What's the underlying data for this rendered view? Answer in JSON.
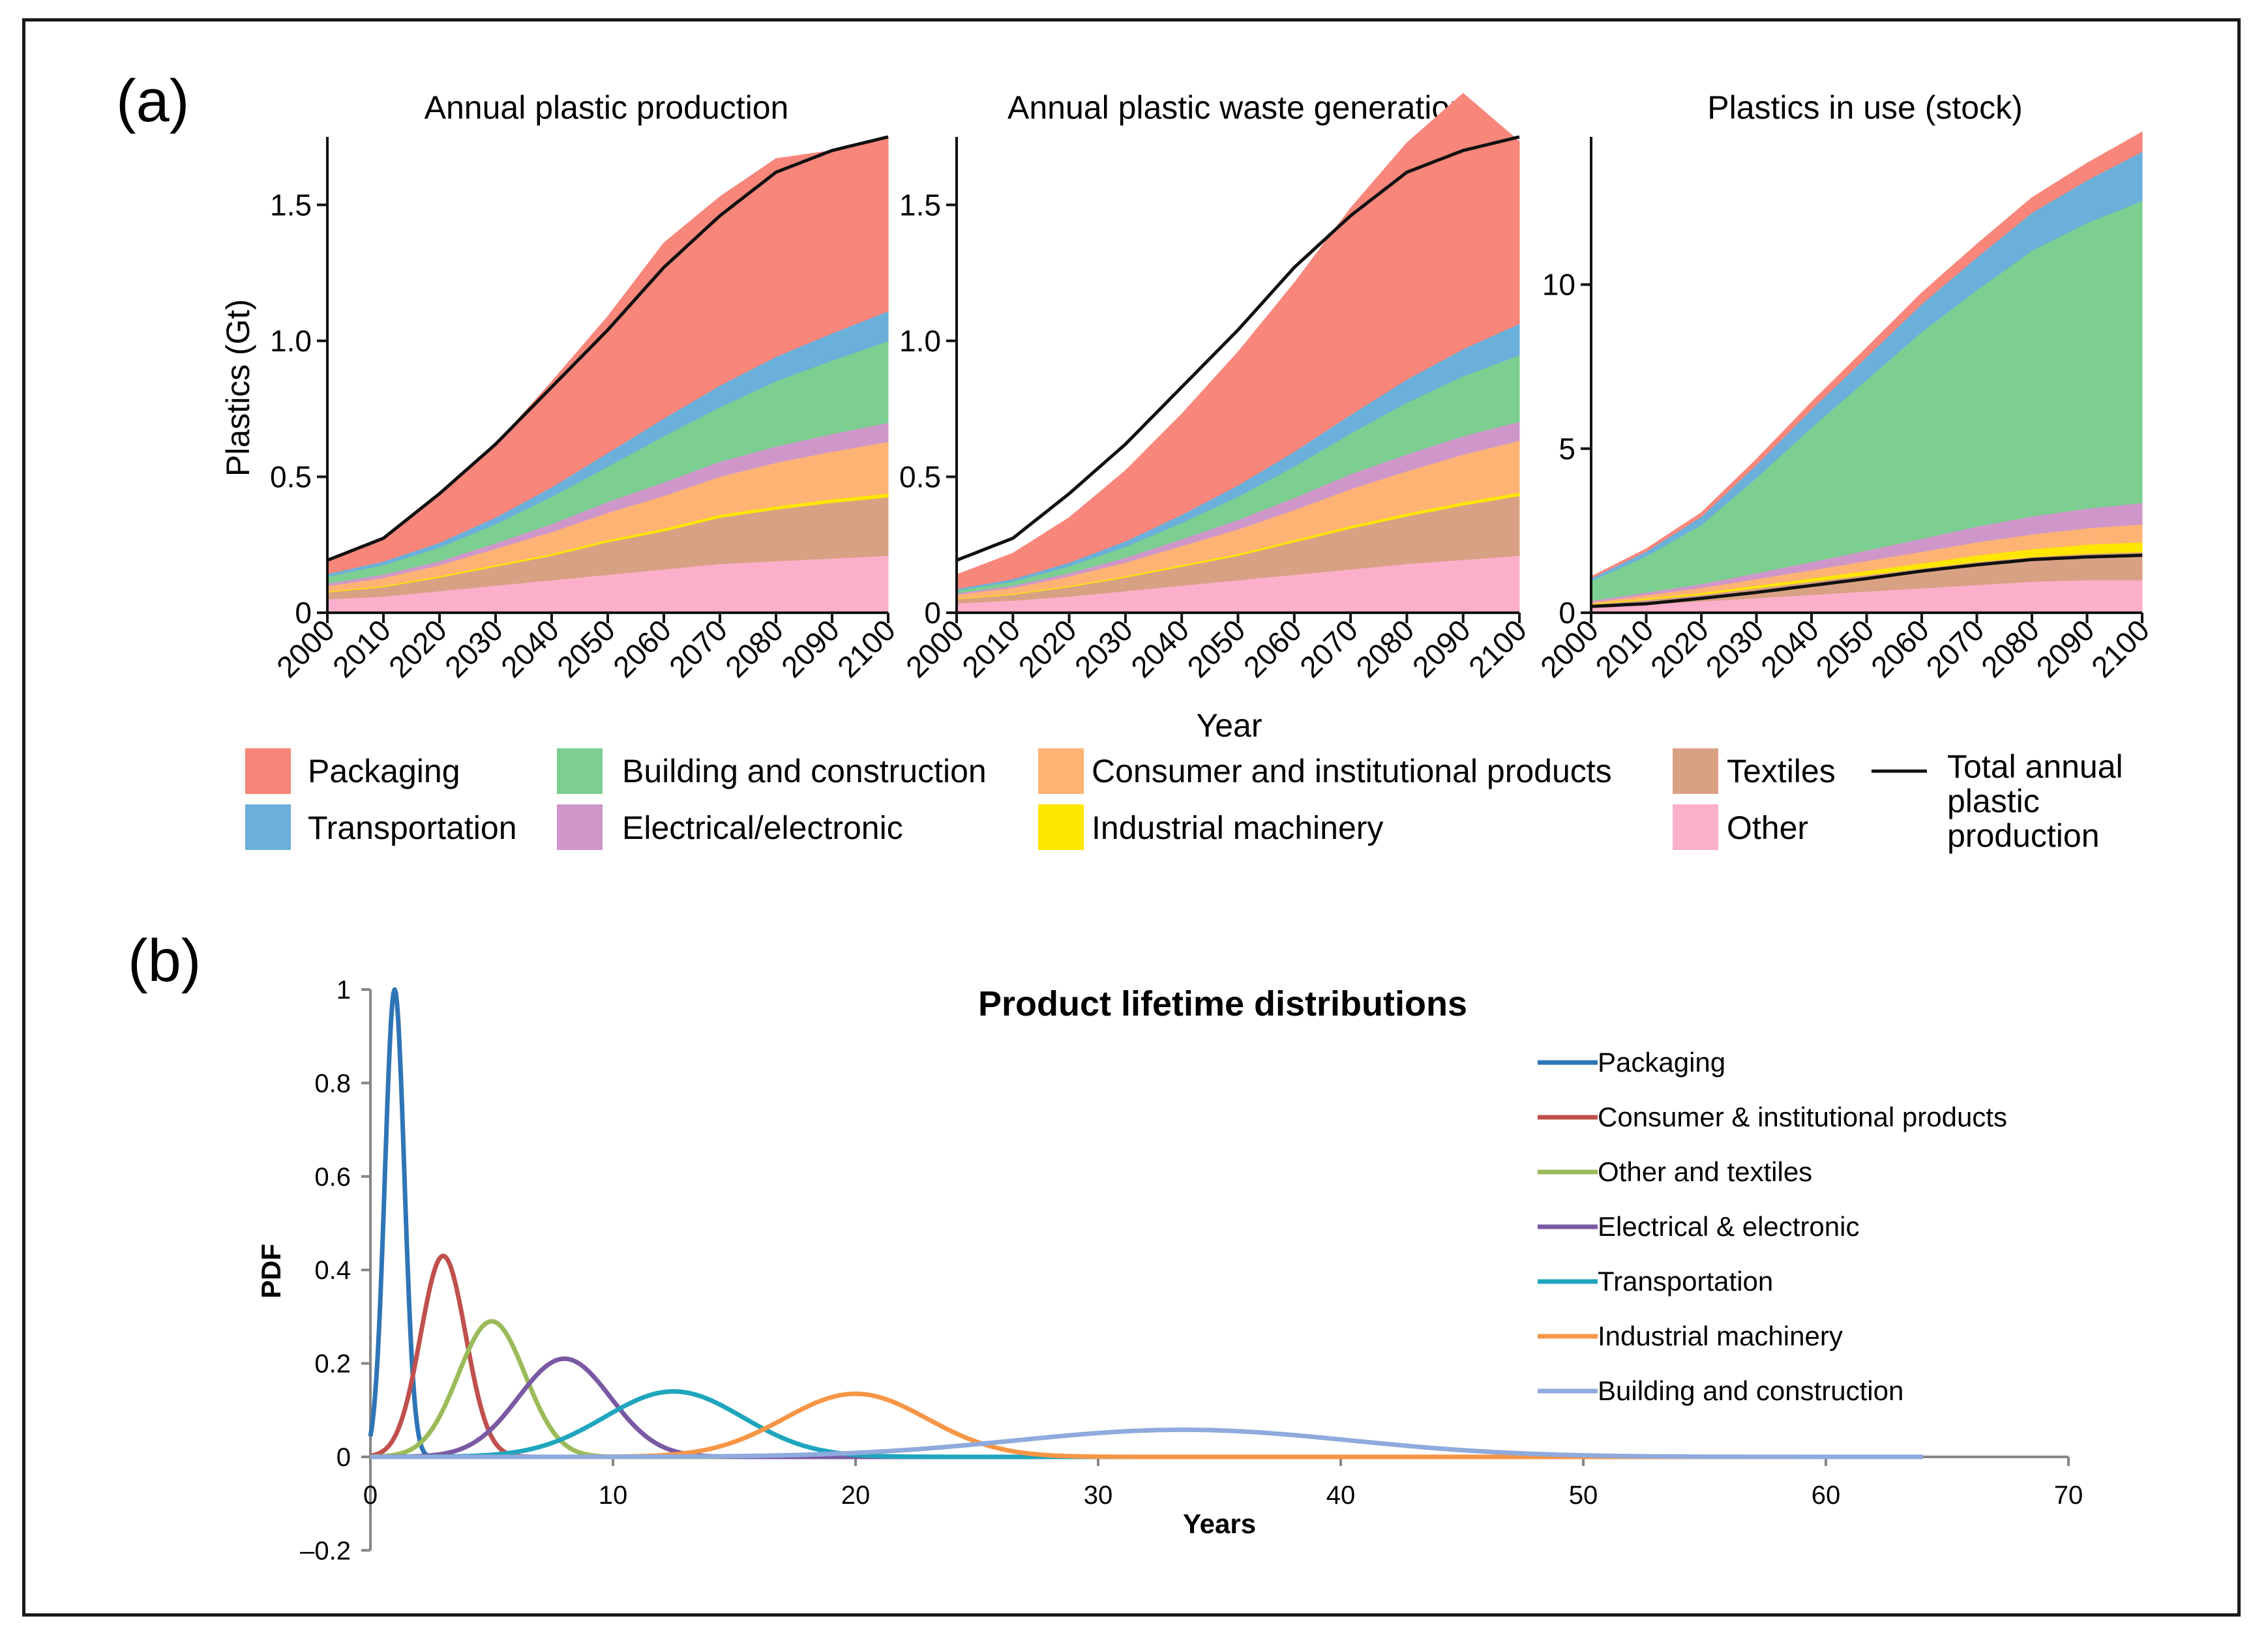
{
  "panel_labels": {
    "a": "(a)",
    "b": "(b)"
  },
  "colors": {
    "packaging": "#f8867a",
    "transportation": "#6ab0da",
    "building": "#7ccf91",
    "electrical": "#cf97c9",
    "consumer": "#fdb374",
    "industrial": "#ffe600",
    "textiles": "#d9a184",
    "other": "#fcafcb",
    "total": "#111111"
  },
  "legend_a": {
    "packaging": "Packaging",
    "transportation": "Transportation",
    "building": "Building and construction",
    "electrical": "Electrical/electronic",
    "consumer": "Consumer and institutional products",
    "industrial": "Industrial machinery",
    "textiles": "Textiles",
    "other": "Other",
    "total_line1": "Total annual",
    "total_line2": "plastic",
    "total_line3": "production"
  },
  "chart_data": [
    {
      "type": "area",
      "title": "Annual plastic production",
      "xlabel": "Year",
      "ylabel": "Plastics (Gt)",
      "x": [
        2000,
        2010,
        2020,
        2030,
        2040,
        2050,
        2060,
        2070,
        2080,
        2090,
        2100
      ],
      "xlim": [
        2000,
        2100
      ],
      "ylim": [
        0,
        1.75
      ],
      "yticks": [
        0,
        0.5,
        1.0,
        1.5
      ],
      "yticklabels": [
        "0",
        "0.5",
        "1.0",
        "1.5"
      ],
      "xticklabels": [
        "2000",
        "2010",
        "2020",
        "2030",
        "2040",
        "2050",
        "2060",
        "2070",
        "2080",
        "2090",
        "2100"
      ],
      "stack_order": [
        "other",
        "textiles",
        "industrial",
        "consumer",
        "electrical",
        "building",
        "transportation",
        "packaging"
      ],
      "series": [
        {
          "name": "Other",
          "key": "other",
          "values": [
            0.05,
            0.06,
            0.08,
            0.1,
            0.12,
            0.14,
            0.16,
            0.18,
            0.19,
            0.2,
            0.21
          ]
        },
        {
          "name": "Textiles",
          "key": "textiles",
          "values": [
            0.025,
            0.035,
            0.05,
            0.07,
            0.09,
            0.12,
            0.14,
            0.17,
            0.19,
            0.205,
            0.215
          ]
        },
        {
          "name": "Industrial machinery",
          "key": "industrial",
          "values": [
            0.003,
            0.004,
            0.005,
            0.006,
            0.007,
            0.008,
            0.01,
            0.011,
            0.012,
            0.013,
            0.014
          ]
        },
        {
          "name": "Consumer and institutional products",
          "key": "consumer",
          "values": [
            0.02,
            0.03,
            0.04,
            0.06,
            0.08,
            0.1,
            0.12,
            0.14,
            0.16,
            0.175,
            0.19
          ]
        },
        {
          "name": "Electrical/electronic",
          "key": "electrical",
          "values": [
            0.01,
            0.012,
            0.015,
            0.02,
            0.03,
            0.04,
            0.05,
            0.055,
            0.06,
            0.065,
            0.07
          ]
        },
        {
          "name": "Building and construction",
          "key": "building",
          "values": [
            0.025,
            0.035,
            0.05,
            0.07,
            0.1,
            0.13,
            0.17,
            0.2,
            0.24,
            0.27,
            0.3
          ]
        },
        {
          "name": "Transportation",
          "key": "transportation",
          "values": [
            0.01,
            0.013,
            0.018,
            0.025,
            0.035,
            0.05,
            0.065,
            0.08,
            0.09,
            0.1,
            0.11
          ]
        },
        {
          "name": "Packaging",
          "key": "packaging",
          "values": [
            0.05,
            0.085,
            0.18,
            0.269,
            0.388,
            0.502,
            0.645,
            0.694,
            0.728,
            0.672,
            0.641
          ]
        }
      ],
      "total_line": {
        "name": "Total annual plastic production",
        "values": [
          0.193,
          0.274,
          0.438,
          0.62,
          0.83,
          1.04,
          1.27,
          1.46,
          1.62,
          1.7,
          1.75
        ]
      }
    },
    {
      "type": "area",
      "title": "Annual plastic waste generation",
      "xlabel": "Year",
      "ylabel": "",
      "x": [
        2000,
        2010,
        2020,
        2030,
        2040,
        2050,
        2060,
        2070,
        2080,
        2090,
        2100
      ],
      "xlim": [
        2000,
        2100
      ],
      "ylim": [
        0,
        1.75
      ],
      "yticks": [
        0,
        0.5,
        1.0,
        1.5
      ],
      "yticklabels": [
        "0",
        "0.5",
        "1.0",
        "1.5"
      ],
      "xticklabels": [
        "2000",
        "2010",
        "2020",
        "2030",
        "2040",
        "2050",
        "2060",
        "2070",
        "2080",
        "2090",
        "2100"
      ],
      "stack_order": [
        "other",
        "textiles",
        "industrial",
        "consumer",
        "electrical",
        "building",
        "transportation",
        "packaging"
      ],
      "series": [
        {
          "name": "Other",
          "key": "other",
          "values": [
            0.035,
            0.045,
            0.06,
            0.08,
            0.1,
            0.12,
            0.14,
            0.16,
            0.18,
            0.195,
            0.21
          ]
        },
        {
          "name": "Textiles",
          "key": "textiles",
          "values": [
            0.015,
            0.022,
            0.035,
            0.05,
            0.07,
            0.09,
            0.12,
            0.15,
            0.175,
            0.2,
            0.22
          ]
        },
        {
          "name": "Industrial machinery",
          "key": "industrial",
          "values": [
            0.002,
            0.003,
            0.004,
            0.005,
            0.006,
            0.007,
            0.008,
            0.01,
            0.011,
            0.012,
            0.013
          ]
        },
        {
          "name": "Consumer and institutional products",
          "key": "consumer",
          "values": [
            0.015,
            0.022,
            0.035,
            0.05,
            0.07,
            0.09,
            0.11,
            0.135,
            0.155,
            0.175,
            0.19
          ]
        },
        {
          "name": "Electrical/electronic",
          "key": "electrical",
          "values": [
            0.005,
            0.008,
            0.012,
            0.018,
            0.025,
            0.035,
            0.045,
            0.055,
            0.062,
            0.068,
            0.07
          ]
        },
        {
          "name": "Building and construction",
          "key": "building",
          "values": [
            0.01,
            0.015,
            0.025,
            0.04,
            0.06,
            0.085,
            0.115,
            0.15,
            0.19,
            0.22,
            0.245
          ]
        },
        {
          "name": "Transportation",
          "key": "transportation",
          "values": [
            0.006,
            0.009,
            0.014,
            0.02,
            0.03,
            0.042,
            0.055,
            0.068,
            0.085,
            0.1,
            0.115
          ]
        },
        {
          "name": "Packaging",
          "key": "packaging",
          "values": [
            0.052,
            0.095,
            0.165,
            0.26,
            0.37,
            0.49,
            0.62,
            0.76,
            0.87,
            0.94,
            0.67
          ]
        }
      ],
      "total_line": {
        "name": "Total annual plastic production",
        "values": [
          0.193,
          0.274,
          0.438,
          0.62,
          0.83,
          1.04,
          1.27,
          1.46,
          1.62,
          1.7,
          1.75
        ]
      }
    },
    {
      "type": "area",
      "title": "Plastics in use (stock)",
      "xlabel": "Year",
      "ylabel": "",
      "x": [
        2000,
        2010,
        2020,
        2030,
        2040,
        2050,
        2060,
        2070,
        2080,
        2090,
        2100
      ],
      "xlim": [
        2000,
        2100
      ],
      "ylim": [
        0,
        14.5
      ],
      "yticks": [
        0,
        5,
        10
      ],
      "yticklabels": [
        "0",
        "5",
        "10"
      ],
      "xticklabels": [
        "2000",
        "2010",
        "2020",
        "2030",
        "2040",
        "2050",
        "2060",
        "2070",
        "2080",
        "2090",
        "2100"
      ],
      "stack_order": [
        "other",
        "textiles",
        "industrial",
        "consumer",
        "electrical",
        "building",
        "transportation",
        "packaging"
      ],
      "series": [
        {
          "name": "Other",
          "key": "other",
          "values": [
            0.15,
            0.25,
            0.35,
            0.45,
            0.55,
            0.65,
            0.75,
            0.85,
            0.95,
            1.0,
            1.0
          ]
        },
        {
          "name": "Textiles",
          "key": "textiles",
          "values": [
            0.1,
            0.15,
            0.2,
            0.3,
            0.4,
            0.5,
            0.6,
            0.7,
            0.75,
            0.8,
            0.85
          ]
        },
        {
          "name": "Industrial machinery",
          "key": "industrial",
          "values": [
            0.02,
            0.04,
            0.06,
            0.08,
            0.1,
            0.13,
            0.16,
            0.2,
            0.24,
            0.28,
            0.3
          ]
        },
        {
          "name": "Consumer and institutional products",
          "key": "consumer",
          "values": [
            0.05,
            0.1,
            0.15,
            0.2,
            0.25,
            0.3,
            0.35,
            0.4,
            0.45,
            0.5,
            0.55
          ]
        },
        {
          "name": "Electrical/electronic",
          "key": "electrical",
          "values": [
            0.05,
            0.08,
            0.12,
            0.18,
            0.25,
            0.32,
            0.4,
            0.48,
            0.55,
            0.6,
            0.65
          ]
        },
        {
          "name": "Building and construction",
          "key": "building",
          "values": [
            0.6,
            1.1,
            1.8,
            2.9,
            4.1,
            5.2,
            6.3,
            7.2,
            8.1,
            8.7,
            9.2
          ]
        },
        {
          "name": "Transportation",
          "key": "transportation",
          "values": [
            0.08,
            0.15,
            0.25,
            0.4,
            0.55,
            0.7,
            0.85,
            1.0,
            1.15,
            1.3,
            1.5
          ]
        },
        {
          "name": "Packaging",
          "key": "packaging",
          "values": [
            0.05,
            0.08,
            0.12,
            0.17,
            0.22,
            0.28,
            0.34,
            0.4,
            0.46,
            0.52,
            0.6
          ]
        }
      ],
      "total_line": {
        "name": "Total annual plastic production",
        "values": [
          0.193,
          0.274,
          0.438,
          0.62,
          0.83,
          1.04,
          1.27,
          1.46,
          1.62,
          1.7,
          1.75
        ]
      }
    },
    {
      "type": "line",
      "title": "Product lifetime distributions",
      "xlabel": "Years",
      "ylabel": "PDF",
      "xlim": [
        0,
        70
      ],
      "ylim": [
        -0.2,
        1
      ],
      "xticks": [
        0,
        10,
        20,
        30,
        40,
        50,
        60,
        70
      ],
      "xticklabels": [
        "0",
        "10",
        "20",
        "30",
        "40",
        "50",
        "60",
        "70"
      ],
      "yticks": [
        -0.2,
        0,
        0.2,
        0.4,
        0.6,
        0.8,
        1
      ],
      "yticklabels": [
        "–0.2",
        "0",
        "0.2",
        "0.4",
        "0.6",
        "0.8",
        "1"
      ],
      "x_end": 64,
      "series": [
        {
          "name": "Packaging",
          "color": "#2e75b6",
          "mean": 1,
          "peak": 1.0,
          "sd": 0.4
        },
        {
          "name": "Consumer & institutional products",
          "color": "#c0504d",
          "mean": 3,
          "peak": 0.43,
          "sd": 0.93
        },
        {
          "name": "Other and textiles",
          "color": "#9bbb59",
          "mean": 5,
          "peak": 0.29,
          "sd": 1.38
        },
        {
          "name": "Electrical & electronic",
          "color": "#7a59a3",
          "mean": 8,
          "peak": 0.21,
          "sd": 1.9
        },
        {
          "name": "Transportation",
          "color": "#1fa5bd",
          "mean": 12.5,
          "peak": 0.14,
          "sd": 2.85
        },
        {
          "name": "Industrial machinery",
          "color": "#f79646",
          "mean": 20,
          "peak": 0.135,
          "sd": 2.95
        },
        {
          "name": "Building and construction",
          "color": "#8faadc",
          "mean": 33.5,
          "peak": 0.058,
          "sd": 6.9
        }
      ]
    }
  ]
}
